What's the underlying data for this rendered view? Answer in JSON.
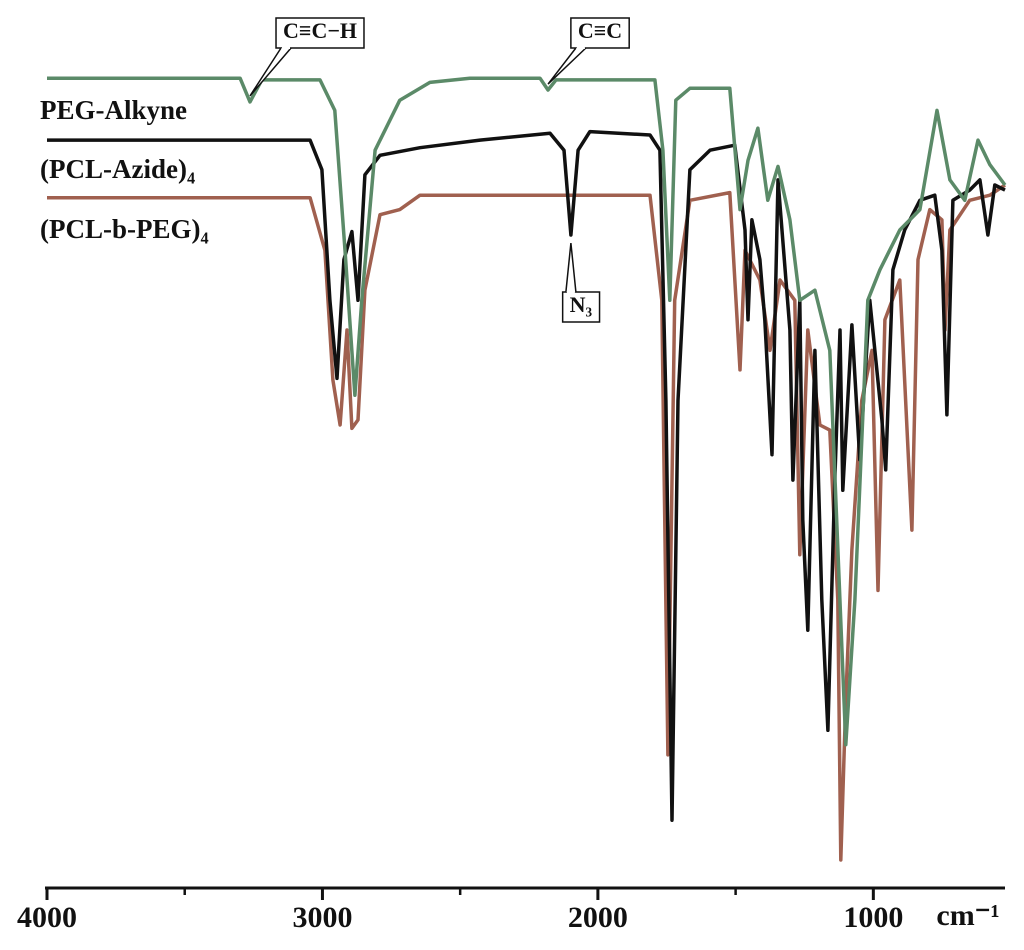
{
  "chart_data": {
    "type": "line",
    "x_label": "cm⁻¹",
    "xlim": [
      4000,
      522
    ],
    "xticks": [
      4000,
      3000,
      2000,
      1000
    ],
    "xminor_ticks": [
      3500,
      2500,
      1500
    ],
    "ylim": [
      0,
      100
    ],
    "series": [
      {
        "name": "PEG-Alkyne",
        "color": "#5b8a68",
        "x": [
          4000,
          3299,
          3263,
          3220,
          3009,
          2955,
          2918,
          2882,
          2857,
          2809,
          2719,
          2610,
          2465,
          2210,
          2181,
          2152,
          1793,
          1764,
          1739,
          1717,
          1666,
          1521,
          1484,
          1455,
          1419,
          1383,
          1346,
          1303,
          1267,
          1212,
          1158,
          1100,
          1067,
          1020,
          976,
          904,
          831,
          769,
          722,
          668,
          620,
          577,
          522
        ],
        "values": [
          95.5,
          95.5,
          92.7,
          95.3,
          95.3,
          91.7,
          75.2,
          58.1,
          69.3,
          87.0,
          92.9,
          95.0,
          95.5,
          95.5,
          94.1,
          95.3,
          95.3,
          87.0,
          69.3,
          92.9,
          94.3,
          94.3,
          80.0,
          85.8,
          89.6,
          81.1,
          85.1,
          78.8,
          69.3,
          70.5,
          63.4,
          16.9,
          34.0,
          69.3,
          72.9,
          77.6,
          80.0,
          91.7,
          83.5,
          81.1,
          88.2,
          85.3,
          82.9
        ]
      },
      {
        "name": "(PCL-Azide)₄",
        "color": "#111111",
        "x": [
          4000,
          3045,
          3002,
          2973,
          2947,
          2922,
          2893,
          2871,
          2846,
          2791,
          2646,
          2428,
          2174,
          2123,
          2098,
          2072,
          2029,
          1811,
          1775,
          1753,
          1731,
          1709,
          1666,
          1593,
          1503,
          1466,
          1455,
          1441,
          1412,
          1394,
          1368,
          1346,
          1303,
          1292,
          1267,
          1256,
          1238,
          1212,
          1187,
          1165,
          1140,
          1121,
          1111,
          1078,
          1049,
          1013,
          969,
          955,
          929,
          886,
          831,
          777,
          751,
          733,
          711,
          650,
          613,
          584,
          559,
          522
        ],
        "values": [
          88.2,
          88.2,
          84.7,
          69.3,
          60.1,
          74.1,
          77.4,
          69.3,
          84.1,
          86.4,
          87.3,
          88.2,
          89.0,
          87.0,
          77.0,
          87.0,
          89.2,
          88.8,
          87.0,
          57.5,
          8.0,
          57.5,
          84.7,
          87.0,
          87.6,
          77.6,
          67.0,
          78.8,
          74.1,
          67.0,
          51.1,
          83.5,
          65.8,
          48.1,
          69.3,
          43.4,
          30.4,
          63.4,
          34.0,
          18.6,
          48.1,
          65.8,
          46.9,
          66.4,
          50.5,
          69.3,
          55.2,
          49.3,
          72.9,
          77.6,
          81.1,
          81.7,
          75.2,
          55.8,
          81.1,
          82.3,
          83.5,
          77.0,
          82.9,
          82.3
        ]
      },
      {
        "name": "(PCL-b-PEG)₄",
        "color": "#a0604f",
        "x": [
          4000,
          3045,
          2991,
          2962,
          2936,
          2911,
          2893,
          2871,
          2846,
          2791,
          2719,
          2646,
          1811,
          1768,
          1746,
          1721,
          1666,
          1521,
          1484,
          1466,
          1412,
          1375,
          1339,
          1285,
          1267,
          1238,
          1194,
          1158,
          1129,
          1118,
          1100,
          1078,
          1042,
          1005,
          983,
          958,
          904,
          860,
          838,
          795,
          751,
          740,
          722,
          650,
          577,
          522
        ],
        "values": [
          81.4,
          81.4,
          75.2,
          59.9,
          54.6,
          65.8,
          54.2,
          55.2,
          70.5,
          79.4,
          80.0,
          81.7,
          81.7,
          69.3,
          15.7,
          69.3,
          81.1,
          82.0,
          61.1,
          75.2,
          71.7,
          63.4,
          71.7,
          69.3,
          39.3,
          65.8,
          54.6,
          54.0,
          34.0,
          3.3,
          22.2,
          39.9,
          57.5,
          63.4,
          35.1,
          67.0,
          71.7,
          42.2,
          74.1,
          80.0,
          78.8,
          65.8,
          77.6,
          81.1,
          81.7,
          82.9
        ]
      }
    ],
    "annotations": [
      {
        "text": "C≡C−H",
        "x": 3263,
        "series": 0
      },
      {
        "text": "C≡C",
        "x": 2181,
        "series": 0
      },
      {
        "text": "N₃",
        "x": 2098,
        "series": 1
      }
    ]
  }
}
